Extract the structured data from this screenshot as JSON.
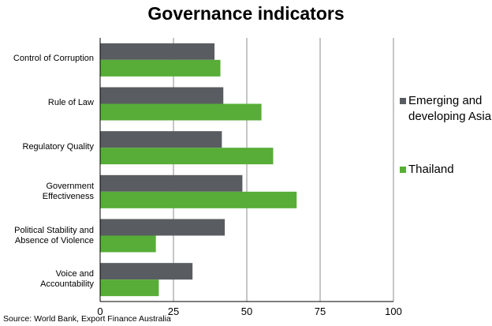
{
  "chart_data": {
    "type": "bar",
    "orientation": "horizontal",
    "title": "Governance indicators",
    "categories": [
      "Control of Corruption",
      "Rule of Law",
      "Regulatory Quality",
      "Government Effectiveness",
      "Political Stability and Absence of Violence",
      "Voice and Accountability"
    ],
    "category_lines": [
      [
        "Control of Corruption"
      ],
      [
        "Rule of Law"
      ],
      [
        "Regulatory Quality"
      ],
      [
        "Government",
        "Effectiveness"
      ],
      [
        "Political Stability and",
        "Absence of Violence"
      ],
      [
        "Voice and",
        "Accountability"
      ]
    ],
    "series": [
      {
        "name": "Emerging and developing Asia",
        "legend_lines": [
          "Emerging and",
          "developing Asia"
        ],
        "color": "#595d61",
        "values": [
          39,
          42,
          41.5,
          48.5,
          42.5,
          31.5
        ]
      },
      {
        "name": "Thailand",
        "legend_lines": [
          "Thailand"
        ],
        "color": "#57ad37",
        "values": [
          41,
          55,
          59,
          67,
          19,
          20
        ]
      }
    ],
    "xlim": [
      0,
      100
    ],
    "xticks": [
      "0",
      "25",
      "50",
      "75",
      "100"
    ],
    "grid": "vertical",
    "legend_position": "right"
  },
  "source": "Source: World Bank, Export Finance Australia"
}
